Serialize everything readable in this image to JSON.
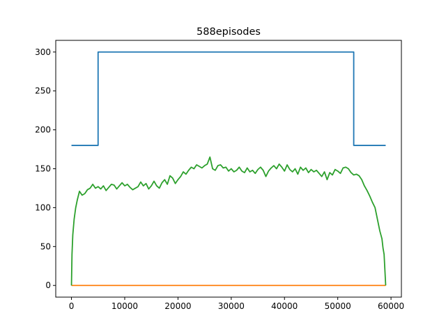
{
  "chart_data": {
    "type": "line",
    "title": "588episodes",
    "xlabel": "",
    "ylabel": "",
    "xlim": [
      -2950,
      61950
    ],
    "ylim": [
      -15,
      315
    ],
    "xticks": [
      0,
      10000,
      20000,
      30000,
      40000,
      50000,
      60000
    ],
    "yticks": [
      0,
      50,
      100,
      150,
      200,
      250,
      300
    ],
    "grid": false,
    "legend": "none",
    "series": [
      {
        "color": "#1f77b4",
        "x": [
          0,
          5000,
          5000,
          53000,
          53000,
          59000
        ],
        "y": [
          180,
          180,
          300,
          300,
          180,
          180
        ]
      },
      {
        "color": "#ff7f0e",
        "x": [
          0,
          59000
        ],
        "y": [
          0,
          0
        ]
      },
      {
        "color": "#2ca02c",
        "x": [
          0,
          100,
          250,
          500,
          800,
          1100,
          1500,
          2000,
          2500,
          3000,
          3500,
          4000,
          4500,
          5000,
          5500,
          6000,
          6500,
          7000,
          7500,
          8000,
          8500,
          9000,
          9500,
          10000,
          10500,
          11000,
          11500,
          12000,
          12500,
          13000,
          13500,
          14000,
          14500,
          15000,
          15500,
          16000,
          16500,
          17000,
          17500,
          18000,
          18500,
          19000,
          19500,
          20000,
          20500,
          21000,
          21500,
          22000,
          22500,
          23000,
          23500,
          24000,
          24500,
          25000,
          25500,
          26000,
          26500,
          27000,
          27500,
          28000,
          28500,
          29000,
          29500,
          30000,
          30500,
          31000,
          31500,
          32000,
          32500,
          33000,
          33500,
          34000,
          34500,
          35000,
          35500,
          36000,
          36500,
          37000,
          37500,
          38000,
          38500,
          39000,
          39500,
          40000,
          40500,
          41000,
          41500,
          42000,
          42500,
          43000,
          43500,
          44000,
          44500,
          45000,
          45500,
          46000,
          46500,
          47000,
          47500,
          48000,
          48500,
          49000,
          49500,
          50000,
          50500,
          51000,
          51500,
          52000,
          52500,
          53000,
          53500,
          54000,
          54500,
          55000,
          55500,
          56000,
          56500,
          57000,
          57300,
          57600,
          57900,
          58100,
          58300,
          58500,
          58700,
          58850,
          59000
        ],
        "y": [
          0,
          40,
          65,
          85,
          100,
          110,
          121,
          116,
          118,
          123,
          125,
          130,
          125,
          127,
          124,
          128,
          122,
          126,
          130,
          129,
          124,
          128,
          132,
          128,
          130,
          126,
          123,
          125,
          127,
          133,
          128,
          131,
          124,
          128,
          134,
          128,
          125,
          132,
          136,
          130,
          141,
          138,
          131,
          136,
          140,
          146,
          143,
          148,
          152,
          150,
          155,
          153,
          151,
          154,
          156,
          165,
          150,
          148,
          154,
          155,
          151,
          152,
          147,
          150,
          146,
          148,
          152,
          147,
          145,
          151,
          146,
          148,
          144,
          149,
          152,
          148,
          140,
          147,
          151,
          154,
          150,
          156,
          152,
          147,
          155,
          149,
          146,
          150,
          143,
          152,
          148,
          151,
          145,
          149,
          146,
          148,
          144,
          140,
          146,
          136,
          145,
          142,
          149,
          147,
          144,
          151,
          152,
          150,
          145,
          142,
          143,
          141,
          136,
          128,
          122,
          115,
          107,
          100,
          90,
          80,
          70,
          65,
          60,
          48,
          40,
          20,
          0
        ]
      }
    ]
  }
}
